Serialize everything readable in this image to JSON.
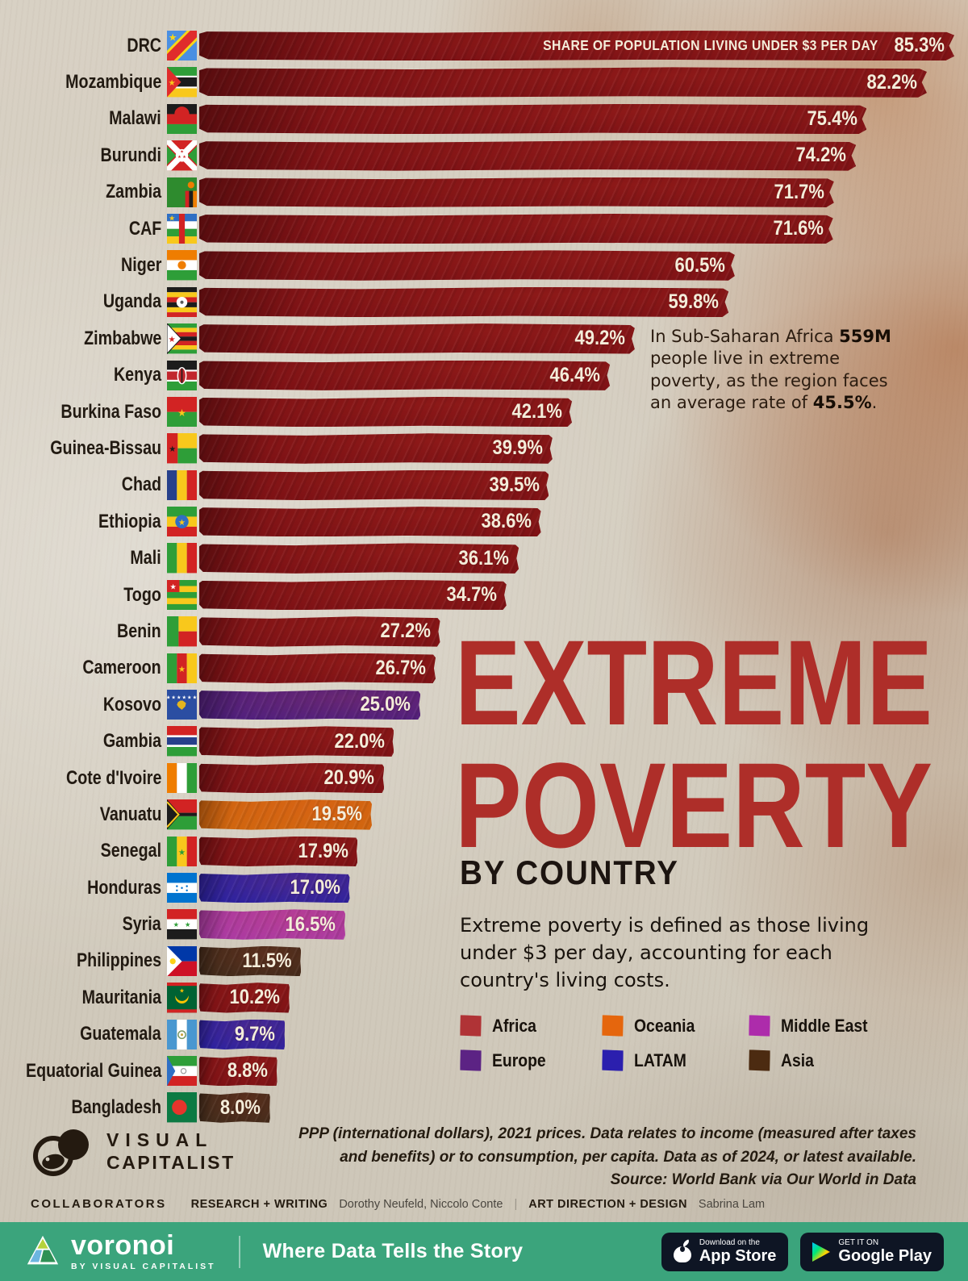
{
  "chart_data": {
    "type": "bar",
    "title": "Extreme Poverty by Country",
    "series_label": "SHARE OF POPULATION LIVING UNDER $3 PER DAY",
    "xlabel": "Share of population living under $3 per day (%)",
    "x_max": 85.3,
    "rows": [
      {
        "country": "DRC",
        "value": 85.3,
        "value_label": "85.3%",
        "region": "Africa",
        "flag": "drc"
      },
      {
        "country": "Mozambique",
        "value": 82.2,
        "value_label": "82.2%",
        "region": "Africa",
        "flag": "mozambique"
      },
      {
        "country": "Malawi",
        "value": 75.4,
        "value_label": "75.4%",
        "region": "Africa",
        "flag": "malawi"
      },
      {
        "country": "Burundi",
        "value": 74.2,
        "value_label": "74.2%",
        "region": "Africa",
        "flag": "burundi"
      },
      {
        "country": "Zambia",
        "value": 71.7,
        "value_label": "71.7%",
        "region": "Africa",
        "flag": "zambia"
      },
      {
        "country": "CAF",
        "value": 71.6,
        "value_label": "71.6%",
        "region": "Africa",
        "flag": "caf"
      },
      {
        "country": "Niger",
        "value": 60.5,
        "value_label": "60.5%",
        "region": "Africa",
        "flag": "niger"
      },
      {
        "country": "Uganda",
        "value": 59.8,
        "value_label": "59.8%",
        "region": "Africa",
        "flag": "uganda"
      },
      {
        "country": "Zimbabwe",
        "value": 49.2,
        "value_label": "49.2%",
        "region": "Africa",
        "flag": "zimbabwe"
      },
      {
        "country": "Kenya",
        "value": 46.4,
        "value_label": "46.4%",
        "region": "Africa",
        "flag": "kenya"
      },
      {
        "country": "Burkina Faso",
        "value": 42.1,
        "value_label": "42.1%",
        "region": "Africa",
        "flag": "burkina"
      },
      {
        "country": "Guinea-Bissau",
        "value": 39.9,
        "value_label": "39.9%",
        "region": "Africa",
        "flag": "guineabissau"
      },
      {
        "country": "Chad",
        "value": 39.5,
        "value_label": "39.5%",
        "region": "Africa",
        "flag": "chad"
      },
      {
        "country": "Ethiopia",
        "value": 38.6,
        "value_label": "38.6%",
        "region": "Africa",
        "flag": "ethiopia"
      },
      {
        "country": "Mali",
        "value": 36.1,
        "value_label": "36.1%",
        "region": "Africa",
        "flag": "mali"
      },
      {
        "country": "Togo",
        "value": 34.7,
        "value_label": "34.7%",
        "region": "Africa",
        "flag": "togo"
      },
      {
        "country": "Benin",
        "value": 27.2,
        "value_label": "27.2%",
        "region": "Africa",
        "flag": "benin"
      },
      {
        "country": "Cameroon",
        "value": 26.7,
        "value_label": "26.7%",
        "region": "Africa",
        "flag": "cameroon"
      },
      {
        "country": "Kosovo",
        "value": 25.0,
        "value_label": "25.0%",
        "region": "Europe",
        "flag": "kosovo"
      },
      {
        "country": "Gambia",
        "value": 22.0,
        "value_label": "22.0%",
        "region": "Africa",
        "flag": "gambia"
      },
      {
        "country": "Cote d'Ivoire",
        "value": 20.9,
        "value_label": "20.9%",
        "region": "Africa",
        "flag": "cotedivoire"
      },
      {
        "country": "Vanuatu",
        "value": 19.5,
        "value_label": "19.5%",
        "region": "Oceania",
        "flag": "vanuatu"
      },
      {
        "country": "Senegal",
        "value": 17.9,
        "value_label": "17.9%",
        "region": "Africa",
        "flag": "senegal"
      },
      {
        "country": "Honduras",
        "value": 17.0,
        "value_label": "17.0%",
        "region": "LATAM",
        "flag": "honduras"
      },
      {
        "country": "Syria",
        "value": 16.5,
        "value_label": "16.5%",
        "region": "Middle East",
        "flag": "syria"
      },
      {
        "country": "Philippines",
        "value": 11.5,
        "value_label": "11.5%",
        "region": "Asia",
        "flag": "philippines"
      },
      {
        "country": "Mauritania",
        "value": 10.2,
        "value_label": "10.2%",
        "region": "Africa",
        "flag": "mauritania"
      },
      {
        "country": "Guatemala",
        "value": 9.7,
        "value_label": "9.7%",
        "region": "LATAM",
        "flag": "guatemala"
      },
      {
        "country": "Equatorial Guinea",
        "value": 8.8,
        "value_label": "8.8%",
        "region": "Africa",
        "flag": "eqguinea"
      },
      {
        "country": "Bangladesh",
        "value": 8.0,
        "value_label": "8.0%",
        "region": "Asia",
        "flag": "bangladesh"
      }
    ]
  },
  "annotation": {
    "part1": "In Sub-Saharan Africa ",
    "bold1": "559M",
    "part2": " people live in extreme poverty, as the region faces an average rate of ",
    "bold2": "45.5%",
    "part3": "."
  },
  "title": {
    "line1": "EXTREME",
    "line2": "POVERTY",
    "subtitle": "BY COUNTRY"
  },
  "description": "Extreme poverty is defined as those living under $3 per day, accounting for each country's living costs.",
  "legend": {
    "items": [
      {
        "label": "Africa",
        "color": "#b03336"
      },
      {
        "label": "Oceania",
        "color": "#e5660d"
      },
      {
        "label": "Middle East",
        "color": "#ad2cab"
      },
      {
        "label": "Europe",
        "color": "#5c2384"
      },
      {
        "label": "LATAM",
        "color": "#2b1fae"
      },
      {
        "label": "Asia",
        "color": "#4c2b11"
      }
    ]
  },
  "colors": {
    "bar": {
      "Africa": "#7a1014",
      "Europe": "#4e1f7e",
      "Oceania": "#cf660e",
      "LATAM": "#2a21a0",
      "Middle East": "#a93aa4",
      "Asia": "#3f2a1a"
    },
    "title_red": "#ae2e29",
    "footer_bar": "#3ba47c",
    "badge_bg": "#0e1524"
  },
  "source_note": {
    "line1": "PPP (international dollars), 2021 prices. Data relates to income (measured after taxes",
    "line2": "and benefits) or to consumption, per capita. Data as of 2024, or latest available.",
    "line3": "Source: World Bank via Our World in Data"
  },
  "collaborators": {
    "heading": "COLLABORATORS",
    "role1": "RESEARCH + WRITING",
    "names1": "Dorothy Neufeld, Niccolo Conte",
    "divider": "|",
    "role2": "ART DIRECTION + DESIGN",
    "names2": "Sabrina Lam"
  },
  "vc_logo": {
    "line1": "VISUAL",
    "line2": "CAPITALIST"
  },
  "footer": {
    "brand": "voronoi",
    "brand_sub": "BY VISUAL CAPITALIST",
    "tagline": "Where Data Tells the Story",
    "appstore_small": "Download on the",
    "appstore_big": "App Store",
    "gplay_small": "GET IT ON",
    "gplay_big": "Google Play"
  }
}
